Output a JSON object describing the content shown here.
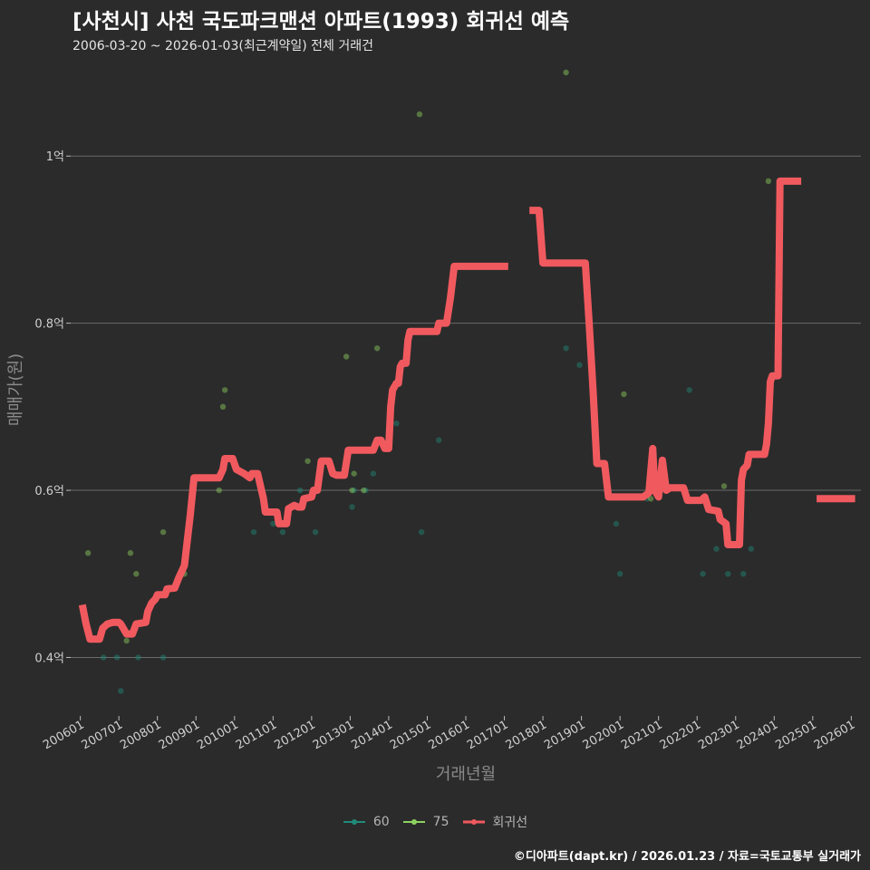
{
  "chart_data": {
    "type": "scatter",
    "title": "[사천시] 사천 국도파크맨션 아파트(1993) 회귀선 예측",
    "subtitle": "2006-03-20 ~ 2026-01-03(최근계약일) 전체 거래건",
    "xlabel": "거래년월",
    "ylabel": "매매가(원)",
    "caption": "©디아파트(dapt.kr) / 2026.01.23 / 자료=국토교통부 실거래가",
    "xlim": [
      2005.75,
      2026.25
    ],
    "ylim": [
      0.33,
      1.1
    ],
    "y_ticks": [
      {
        "value": 0.4,
        "label": "0.4억"
      },
      {
        "value": 0.6,
        "label": "0.6억"
      },
      {
        "value": 0.8,
        "label": "0.8억"
      },
      {
        "value": 1.0,
        "label": "1억"
      }
    ],
    "x_ticks": [
      {
        "value": 2006,
        "label": "200601"
      },
      {
        "value": 2007,
        "label": "200701"
      },
      {
        "value": 2008,
        "label": "200801"
      },
      {
        "value": 2009,
        "label": "200901"
      },
      {
        "value": 2010,
        "label": "201001"
      },
      {
        "value": 2011,
        "label": "201101"
      },
      {
        "value": 2012,
        "label": "201201"
      },
      {
        "value": 2013,
        "label": "201301"
      },
      {
        "value": 2014,
        "label": "201401"
      },
      {
        "value": 2015,
        "label": "201501"
      },
      {
        "value": 2016,
        "label": "201601"
      },
      {
        "value": 2017,
        "label": "201701"
      },
      {
        "value": 2018,
        "label": "201801"
      },
      {
        "value": 2019,
        "label": "201901"
      },
      {
        "value": 2020,
        "label": "202001"
      },
      {
        "value": 2021,
        "label": "202101"
      },
      {
        "value": 2022,
        "label": "202201"
      },
      {
        "value": 2023,
        "label": "202301"
      },
      {
        "value": 2024,
        "label": "202401"
      },
      {
        "value": 2025,
        "label": "202501"
      },
      {
        "value": 2026,
        "label": "202601"
      }
    ],
    "series": [
      {
        "name": "60",
        "color": "#1f8b7a",
        "kind": "points",
        "points": [
          [
            2006.6,
            0.4
          ],
          [
            2006.95,
            0.4
          ],
          [
            2007.05,
            0.36
          ],
          [
            2007.5,
            0.4
          ],
          [
            2008.15,
            0.4
          ],
          [
            2010.5,
            0.55
          ],
          [
            2011.0,
            0.56
          ],
          [
            2011.25,
            0.55
          ],
          [
            2011.7,
            0.6
          ],
          [
            2012.1,
            0.55
          ],
          [
            2013.05,
            0.58
          ],
          [
            2013.1,
            0.6
          ],
          [
            2013.4,
            0.6
          ],
          [
            2013.6,
            0.62
          ],
          [
            2014.0,
            0.66
          ],
          [
            2014.2,
            0.68
          ],
          [
            2014.85,
            0.55
          ],
          [
            2015.3,
            0.66
          ],
          [
            2018.6,
            0.77
          ],
          [
            2018.95,
            0.75
          ],
          [
            2019.9,
            0.56
          ],
          [
            2020.0,
            0.5
          ],
          [
            2020.7,
            0.59
          ],
          [
            2021.2,
            0.6
          ],
          [
            2021.8,
            0.72
          ],
          [
            2022.15,
            0.5
          ],
          [
            2022.5,
            0.53
          ],
          [
            2022.8,
            0.5
          ],
          [
            2023.2,
            0.5
          ],
          [
            2023.4,
            0.53
          ]
        ]
      },
      {
        "name": "75",
        "color": "#8dd35f",
        "kind": "points",
        "points": [
          [
            2006.2,
            0.525
          ],
          [
            2007.2,
            0.42
          ],
          [
            2007.3,
            0.525
          ],
          [
            2007.45,
            0.5
          ],
          [
            2008.15,
            0.55
          ],
          [
            2008.7,
            0.5
          ],
          [
            2009.6,
            0.6
          ],
          [
            2009.7,
            0.7
          ],
          [
            2009.75,
            0.72
          ],
          [
            2011.9,
            0.635
          ],
          [
            2012.9,
            0.76
          ],
          [
            2013.05,
            0.6
          ],
          [
            2013.1,
            0.62
          ],
          [
            2013.35,
            0.6
          ],
          [
            2013.7,
            0.77
          ],
          [
            2014.8,
            1.05
          ],
          [
            2018.6,
            1.1
          ],
          [
            2020.1,
            0.715
          ],
          [
            2020.8,
            0.59
          ],
          [
            2022.7,
            0.605
          ],
          [
            2023.85,
            0.97
          ]
        ]
      },
      {
        "name": "회귀선",
        "color": "#f05a5f",
        "kind": "line",
        "segments": [
          [
            [
              2006.05,
              0.463
            ],
            [
              2006.15,
              0.44
            ],
            [
              2006.25,
              0.422
            ],
            [
              2006.5,
              0.422
            ],
            [
              2006.58,
              0.435
            ],
            [
              2006.7,
              0.44
            ],
            [
              2006.85,
              0.442
            ],
            [
              2007.0,
              0.442
            ],
            [
              2007.05,
              0.44
            ],
            [
              2007.2,
              0.428
            ],
            [
              2007.35,
              0.428
            ],
            [
              2007.45,
              0.44
            ],
            [
              2007.7,
              0.442
            ],
            [
              2007.75,
              0.455
            ],
            [
              2007.85,
              0.465
            ],
            [
              2007.95,
              0.47
            ],
            [
              2008.0,
              0.475
            ],
            [
              2008.2,
              0.475
            ],
            [
              2008.25,
              0.482
            ],
            [
              2008.45,
              0.483
            ],
            [
              2008.55,
              0.495
            ],
            [
              2008.7,
              0.51
            ],
            [
              2008.85,
              0.57
            ],
            [
              2008.95,
              0.615
            ],
            [
              2009.6,
              0.615
            ],
            [
              2009.7,
              0.625
            ],
            [
              2009.75,
              0.638
            ],
            [
              2009.95,
              0.638
            ],
            [
              2010.05,
              0.625
            ],
            [
              2010.25,
              0.62
            ],
            [
              2010.4,
              0.615
            ],
            [
              2010.45,
              0.62
            ],
            [
              2010.6,
              0.62
            ],
            [
              2010.75,
              0.59
            ],
            [
              2010.8,
              0.574
            ],
            [
              2011.1,
              0.574
            ],
            [
              2011.15,
              0.56
            ],
            [
              2011.35,
              0.56
            ],
            [
              2011.4,
              0.578
            ],
            [
              2011.55,
              0.582
            ],
            [
              2011.65,
              0.58
            ],
            [
              2011.75,
              0.58
            ],
            [
              2011.8,
              0.59
            ],
            [
              2012.0,
              0.592
            ],
            [
              2012.05,
              0.6
            ],
            [
              2012.15,
              0.6
            ],
            [
              2012.25,
              0.635
            ],
            [
              2012.45,
              0.635
            ],
            [
              2012.55,
              0.62
            ],
            [
              2012.65,
              0.618
            ],
            [
              2012.85,
              0.618
            ],
            [
              2012.95,
              0.648
            ],
            [
              2013.6,
              0.648
            ],
            [
              2013.7,
              0.66
            ],
            [
              2013.8,
              0.66
            ],
            [
              2013.9,
              0.65
            ],
            [
              2014.0,
              0.65
            ],
            [
              2014.05,
              0.7
            ],
            [
              2014.1,
              0.72
            ],
            [
              2014.2,
              0.728
            ],
            [
              2014.25,
              0.728
            ],
            [
              2014.3,
              0.748
            ],
            [
              2014.35,
              0.752
            ],
            [
              2014.45,
              0.752
            ],
            [
              2014.5,
              0.78
            ],
            [
              2014.55,
              0.79
            ],
            [
              2015.25,
              0.79
            ],
            [
              2015.3,
              0.8
            ],
            [
              2015.5,
              0.8
            ],
            [
              2015.6,
              0.83
            ],
            [
              2015.7,
              0.868
            ],
            [
              2017.1,
              0.868
            ]
          ],
          [
            [
              2017.65,
              0.935
            ],
            [
              2017.9,
              0.935
            ],
            [
              2018.0,
              0.872
            ],
            [
              2019.1,
              0.872
            ],
            [
              2019.2,
              0.8
            ],
            [
              2019.3,
              0.72
            ],
            [
              2019.4,
              0.632
            ],
            [
              2019.6,
              0.632
            ],
            [
              2019.7,
              0.592
            ],
            [
              2020.6,
              0.592
            ],
            [
              2020.75,
              0.597
            ],
            [
              2020.85,
              0.65
            ],
            [
              2020.9,
              0.6
            ],
            [
              2021.0,
              0.592
            ],
            [
              2021.1,
              0.636
            ],
            [
              2021.2,
              0.6
            ],
            [
              2021.3,
              0.603
            ],
            [
              2021.65,
              0.603
            ],
            [
              2021.75,
              0.588
            ],
            [
              2022.1,
              0.588
            ],
            [
              2022.2,
              0.592
            ],
            [
              2022.3,
              0.577
            ],
            [
              2022.55,
              0.575
            ],
            [
              2022.6,
              0.565
            ],
            [
              2022.75,
              0.56
            ],
            [
              2022.8,
              0.535
            ],
            [
              2023.1,
              0.535
            ],
            [
              2023.15,
              0.612
            ],
            [
              2023.2,
              0.625
            ],
            [
              2023.3,
              0.63
            ],
            [
              2023.35,
              0.643
            ],
            [
              2023.75,
              0.643
            ],
            [
              2023.8,
              0.655
            ],
            [
              2023.85,
              0.68
            ],
            [
              2023.9,
              0.73
            ],
            [
              2023.95,
              0.737
            ],
            [
              2024.1,
              0.737
            ],
            [
              2024.15,
              0.97
            ],
            [
              2024.7,
              0.97
            ]
          ],
          [
            [
              2025.1,
              0.59
            ],
            [
              2026.1,
              0.59
            ]
          ]
        ]
      }
    ]
  }
}
